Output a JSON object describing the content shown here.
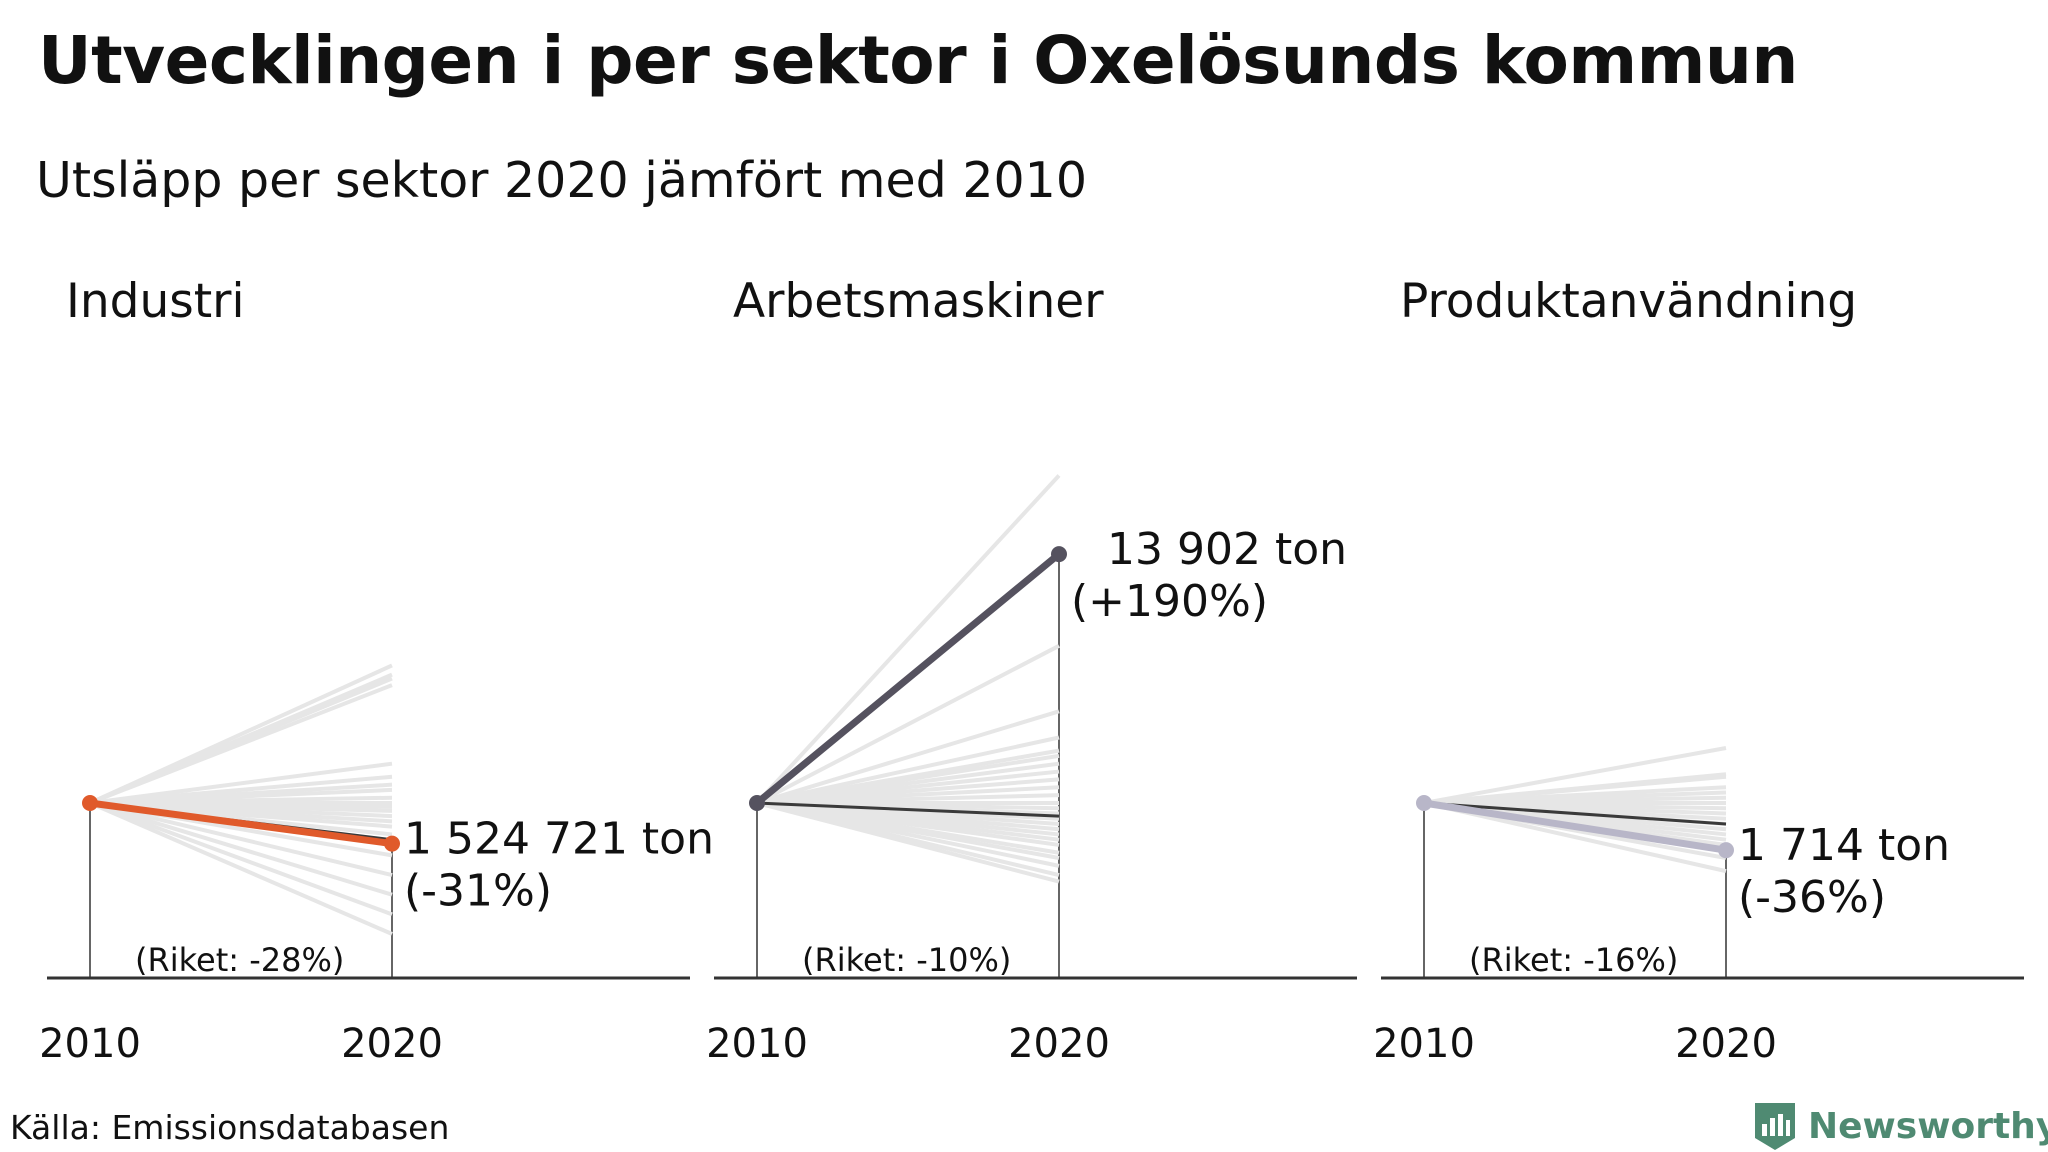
{
  "title": "Utvecklingen i per sektor i Oxelösunds kommun",
  "subtitle": "Utsläpp per sektor 2020 jämfört med 2010",
  "source": "Källa: Emissionsdatabasen",
  "brand": "Newsworthy",
  "colors": {
    "background_lines": "#e6e6e6",
    "national_line": "#3a3a3a",
    "axis": "#333333",
    "text": "#111111",
    "brand": "#4f8a72"
  },
  "icons": {
    "brand_logo": "bar-chart-shield-icon"
  },
  "chart_data": [
    {
      "type": "line",
      "title": "Industri",
      "x": [
        "2010",
        "2020"
      ],
      "value_2020": "1 524 721 ton",
      "municipality_change_pct": -31,
      "change_label": "(-31%)",
      "national_change_pct": -28,
      "national_label": "(Riket: -28%)",
      "color": "#e05a2b",
      "other_municipalities_change_pct": [
        105,
        98,
        95,
        90,
        30,
        20,
        14,
        10,
        4,
        0,
        -3,
        -6,
        -10,
        -14,
        -18,
        -24,
        -30,
        -40,
        -55,
        -70,
        -85,
        -100
      ]
    },
    {
      "type": "line",
      "title": "Arbetsmaskiner",
      "x": [
        "2010",
        "2020"
      ],
      "value_2020": "13 902 ton",
      "municipality_change_pct": 190,
      "change_label": "(+190%)",
      "national_change_pct": -10,
      "national_label": "(Riket: -10%)",
      "color": "#55525f",
      "other_municipalities_change_pct": [
        250,
        120,
        70,
        50,
        40,
        36,
        30,
        24,
        18,
        12,
        6,
        0,
        -4,
        -8,
        -12,
        -16,
        -20,
        -24,
        -28,
        -32,
        -38,
        -42,
        -48,
        -55,
        -60
      ]
    },
    {
      "type": "line",
      "title": "Produktanvändning",
      "x": [
        "2010",
        "2020"
      ],
      "value_2020": "1 714 ton",
      "municipality_change_pct": -36,
      "change_label": "(-36%)",
      "national_change_pct": -16,
      "national_label": "(Riket: -16%)",
      "color": "#b8b6c8",
      "other_municipalities_change_pct": [
        42,
        22,
        20,
        12,
        8,
        4,
        0,
        -4,
        -8,
        -12,
        -16,
        -20,
        -24,
        -28,
        -32,
        -36,
        -42,
        -52
      ]
    }
  ]
}
